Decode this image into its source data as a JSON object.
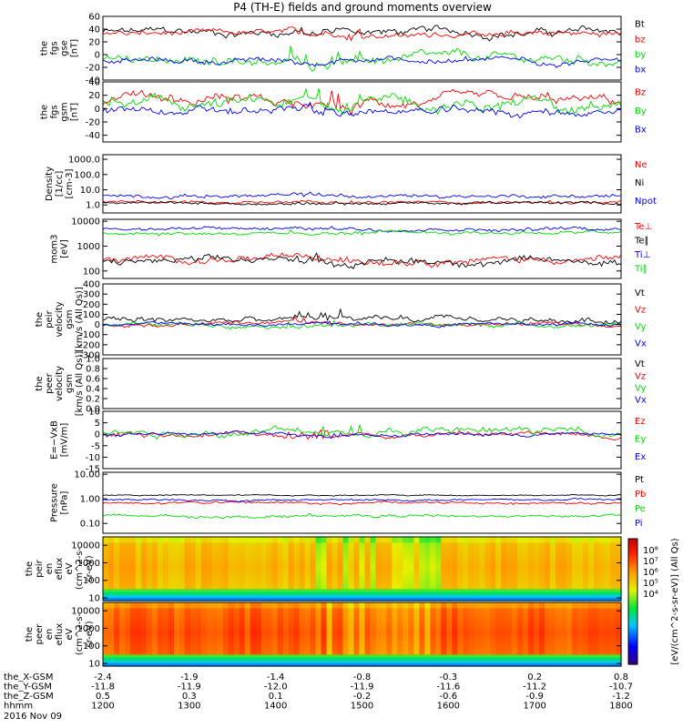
{
  "title": "P4 (TH-E) fields and ground moments overview",
  "colors": {
    "black": "#000000",
    "red": "#ff0000",
    "green": "#00dd00",
    "blue": "#0000ff"
  },
  "chart_data": [
    {
      "type": "line",
      "ylabel": [
        "the",
        "fgs",
        "gse",
        "[nT]"
      ],
      "ylim": [
        -40,
        60
      ],
      "yticks": [
        "60",
        "40",
        "20",
        "0",
        "-20",
        "-40"
      ],
      "yvals": [
        60,
        40,
        20,
        0,
        -20,
        -40
      ],
      "series": [
        {
          "name": "Bt",
          "color": "#000000",
          "level": 35,
          "amp": 8
        },
        {
          "name": "bz",
          "color": "#ff0000",
          "level": 32,
          "amp": 6
        },
        {
          "name": "by",
          "color": "#00dd00",
          "level": -8,
          "amp": 10
        },
        {
          "name": "bx",
          "color": "#0000ff",
          "level": -10,
          "amp": 6
        }
      ]
    },
    {
      "type": "line",
      "ylabel": [
        "the",
        "fgs",
        "gsm",
        "[nT]"
      ],
      "ylim": [
        -50,
        40
      ],
      "yticks": [
        "40",
        "20",
        "0",
        "-20",
        "-40"
      ],
      "yvals": [
        40,
        20,
        0,
        -20,
        -40
      ],
      "series": [
        {
          "name": "Bz",
          "color": "#ff0000",
          "level": 10,
          "amp": 10
        },
        {
          "name": "By",
          "color": "#00dd00",
          "level": 5,
          "amp": 12
        },
        {
          "name": "Bx",
          "color": "#0000ff",
          "level": -5,
          "amp": 8
        }
      ]
    },
    {
      "type": "line",
      "ylabel": [
        "Density",
        "[1/cc]",
        "[cm-3]"
      ],
      "log": true,
      "ylim": [
        0.3,
        2000
      ],
      "yticks": [
        "1000.0",
        "100.0",
        "10.0",
        "1.0"
      ],
      "yvals": [
        1000,
        100,
        10,
        1
      ],
      "series": [
        {
          "name": "Ne",
          "color": "#ff0000",
          "level": 1.5,
          "amp": 0.2
        },
        {
          "name": "Ni",
          "color": "#000000",
          "level": 1.3,
          "amp": 0.2
        },
        {
          "name": "Npot",
          "color": "#0000ff",
          "level": 4,
          "amp": 0.25
        }
      ]
    },
    {
      "type": "line",
      "ylabel": [
        "mom3",
        "[eV]"
      ],
      "log": true,
      "ylim": [
        50,
        12000
      ],
      "yticks": [
        "10000",
        "1000",
        "100"
      ],
      "yvals": [
        10000,
        1000,
        100
      ],
      "series": [
        {
          "name": "Te⊥",
          "color": "#ff0000",
          "level": 300,
          "amp": 0.3
        },
        {
          "name": "Te∥",
          "color": "#000000",
          "level": 250,
          "amp": 0.3
        },
        {
          "name": "Ti⊥",
          "color": "#0000ff",
          "level": 5000,
          "amp": 0.15
        },
        {
          "name": "Ti∥",
          "color": "#00dd00",
          "level": 3500,
          "amp": 0.15
        }
      ]
    },
    {
      "type": "line",
      "ylabel": [
        "the",
        "peir",
        "velocity",
        "gsm",
        "[km/s (All Qs)]"
      ],
      "ylim": [
        -300,
        400
      ],
      "yticks": [
        "400",
        "300",
        "200",
        "100",
        "0",
        "-100",
        "-200",
        "-300"
      ],
      "yvals": [
        400,
        300,
        200,
        100,
        0,
        -100,
        -200,
        -300
      ],
      "series": [
        {
          "name": "Vt",
          "color": "#000000",
          "level": 40,
          "amp": 40
        },
        {
          "name": "Vz",
          "color": "#ff0000",
          "level": 0,
          "amp": 25
        },
        {
          "name": "Vy",
          "color": "#00dd00",
          "level": 0,
          "amp": 25
        },
        {
          "name": "Vx",
          "color": "#0000ff",
          "level": 0,
          "amp": 20
        }
      ]
    },
    {
      "type": "line",
      "ylabel": [
        "the",
        "peer",
        "velocity",
        "gsm",
        "[km/s (All Qs)]"
      ],
      "ylim": [
        0,
        1
      ],
      "yticks": [
        "1.0",
        "0.8",
        "0.6",
        "0.4",
        "0.2",
        "0.0"
      ],
      "yvals": [
        1,
        0.8,
        0.6,
        0.4,
        0.2,
        0
      ],
      "series": [
        {
          "name": "Vt",
          "color": "#000000"
        },
        {
          "name": "Vz",
          "color": "#ff0000"
        },
        {
          "name": "Vy",
          "color": "#00dd00"
        },
        {
          "name": "Vx",
          "color": "#0000ff"
        }
      ]
    },
    {
      "type": "line",
      "ylabel": [
        "E=−VxB",
        "[mV/m]"
      ],
      "ylim": [
        -15,
        10
      ],
      "yticks": [
        "10",
        "5",
        "0",
        "-5",
        "-10",
        "-15"
      ],
      "yvals": [
        10,
        5,
        0,
        -5,
        -10,
        -15
      ],
      "series": [
        {
          "name": "Ez",
          "color": "#ff0000",
          "level": 0,
          "amp": 1.5
        },
        {
          "name": "Ey",
          "color": "#00dd00",
          "level": 1,
          "amp": 2
        },
        {
          "name": "Ex",
          "color": "#0000ff",
          "level": 0,
          "amp": 1
        }
      ]
    },
    {
      "type": "line",
      "ylabel": [
        "Pressure",
        "[nPa]"
      ],
      "log": true,
      "ylim": [
        0.04,
        12
      ],
      "yticks": [
        "10.00",
        "1.00",
        "0.10"
      ],
      "yvals": [
        10,
        1,
        0.1
      ],
      "series": [
        {
          "name": "Pt",
          "color": "#000000",
          "level": 1.4,
          "amp": 0.05
        },
        {
          "name": "Pb",
          "color": "#ff0000",
          "level": 0.7,
          "amp": 0.1
        },
        {
          "name": "Pe",
          "color": "#00dd00",
          "level": 0.2,
          "amp": 0.12
        },
        {
          "name": "Pi",
          "color": "#0000ff",
          "level": 0.9,
          "amp": 0.08
        }
      ]
    },
    {
      "type": "heatmap",
      "ylabel": [
        "the",
        "peir",
        "en",
        "eflux",
        "eV",
        "(cm^2-s-",
        "sr-eV)"
      ],
      "log": true,
      "ylim": [
        7,
        30000
      ],
      "yticks": [
        "10000",
        "1000",
        "100",
        "10"
      ],
      "yvals": [
        10000,
        1000,
        100,
        10
      ],
      "base": 0.75
    },
    {
      "type": "heatmap",
      "ylabel": [
        "the",
        "peer",
        "en",
        "eflux",
        "eV",
        "(cm^2-s-",
        "sr-eV)"
      ],
      "log": true,
      "ylim": [
        7,
        30000
      ],
      "yticks": [
        "10000",
        "1000",
        "100",
        "10"
      ],
      "yvals": [
        10000,
        1000,
        100,
        10
      ],
      "base": 0.88
    }
  ],
  "colorbar": {
    "label": "[eV/(cm^2-s-sr-eV)] (All Qs)",
    "ticks": [
      "10⁸",
      "10⁷",
      "10⁶",
      "10⁵",
      "10⁴"
    ]
  },
  "xaxis": {
    "rows": [
      {
        "label": "the_X-GSM",
        "values": [
          "-2.4",
          "-1.9",
          "-1.4",
          "-0.8",
          "-0.3",
          "0.2",
          "0.8"
        ]
      },
      {
        "label": "the_Y-GSM",
        "values": [
          "-11.8",
          "-11.9",
          "-12.0",
          "-11.9",
          "-11.6",
          "-11.2",
          "-10.7"
        ]
      },
      {
        "label": "the_Z-GSM",
        "values": [
          "0.5",
          "0.3",
          "0.1",
          "-0.2",
          "-0.6",
          "-0.9",
          "-1.2"
        ]
      },
      {
        "label": "hhmm",
        "values": [
          "1200",
          "1300",
          "1400",
          "1500",
          "1600",
          "1700",
          "1800"
        ]
      }
    ],
    "date": "2016 Nov 09"
  }
}
